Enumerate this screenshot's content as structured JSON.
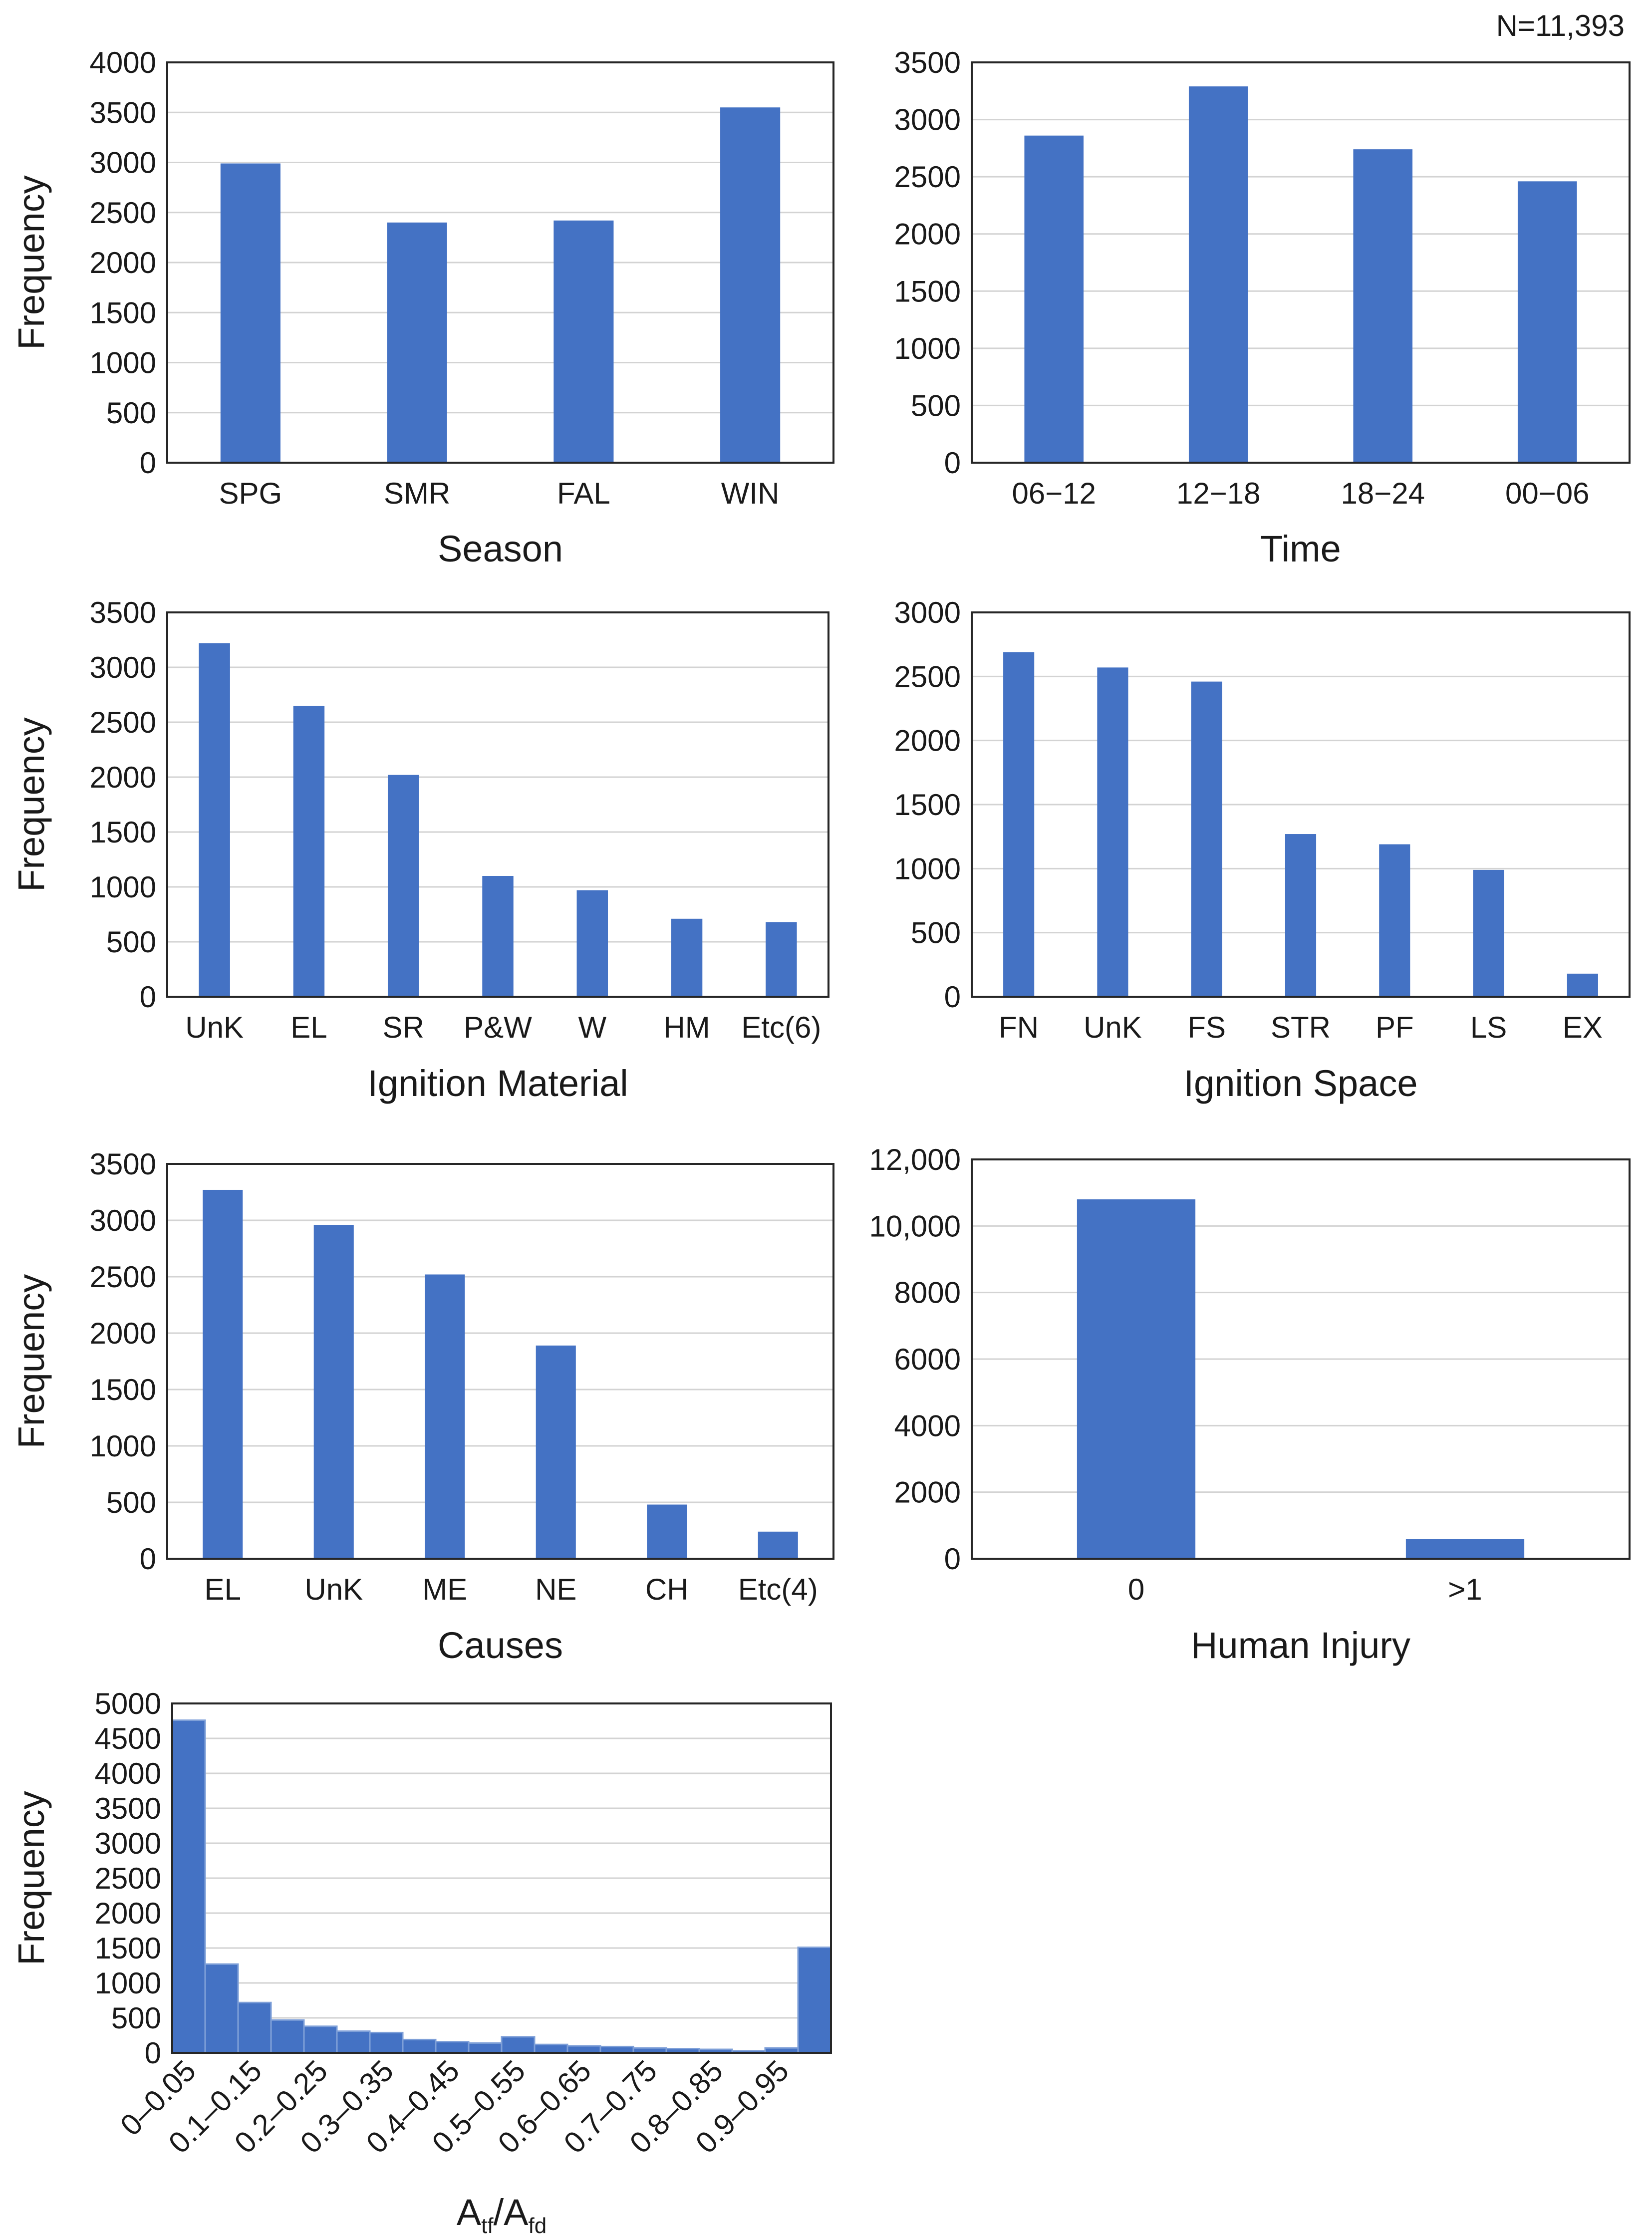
{
  "figure": {
    "sample_size_label": "N=11,393",
    "bar_color": "#4472C4"
  },
  "chart_data": [
    {
      "id": "season",
      "type": "bar",
      "title": "",
      "xlabel": "Season",
      "ylabel": "Frequency",
      "categories": [
        "SPG",
        "SMR",
        "FAL",
        "WIN"
      ],
      "values": [
        2990,
        2400,
        2420,
        3550
      ],
      "ylim": [
        0,
        4000
      ],
      "yticks": [
        0,
        500,
        1000,
        1500,
        2000,
        2500,
        3000,
        3500,
        4000
      ],
      "ytick_labels": [
        "0",
        "500",
        "1000",
        "1500",
        "2000",
        "2500",
        "3000",
        "3500",
        "4000"
      ],
      "grid": true
    },
    {
      "id": "time",
      "type": "bar",
      "title": "",
      "xlabel": "Time",
      "ylabel": "",
      "categories": [
        "06−12",
        "12−18",
        "18−24",
        "00−06"
      ],
      "values": [
        2860,
        3290,
        2740,
        2460
      ],
      "ylim": [
        0,
        3500
      ],
      "yticks": [
        0,
        500,
        1000,
        1500,
        2000,
        2500,
        3000,
        3500
      ],
      "ytick_labels": [
        "0",
        "500",
        "1000",
        "1500",
        "2000",
        "2500",
        "3000",
        "3500"
      ],
      "grid": true
    },
    {
      "id": "ignition-material",
      "type": "bar",
      "title": "",
      "xlabel": "Ignition Material",
      "ylabel": "Frequency",
      "categories": [
        "UnK",
        "EL",
        "SR",
        "P&W",
        "W",
        "HM",
        "Etc(6)"
      ],
      "values": [
        3220,
        2650,
        2020,
        1100,
        970,
        710,
        680
      ],
      "ylim": [
        0,
        3500
      ],
      "yticks": [
        0,
        500,
        1000,
        1500,
        2000,
        2500,
        3000,
        3500
      ],
      "ytick_labels": [
        "0",
        "500",
        "1000",
        "1500",
        "2000",
        "2500",
        "3000",
        "3500"
      ],
      "grid": true
    },
    {
      "id": "ignition-space",
      "type": "bar",
      "title": "",
      "xlabel": "Ignition Space",
      "ylabel": "",
      "categories": [
        "FN",
        "UnK",
        "FS",
        "STR",
        "PF",
        "LS",
        "EX"
      ],
      "values": [
        2690,
        2570,
        2460,
        1270,
        1190,
        990,
        180
      ],
      "ylim": [
        0,
        3000
      ],
      "yticks": [
        0,
        500,
        1000,
        1500,
        2000,
        2500,
        3000
      ],
      "ytick_labels": [
        "0",
        "500",
        "1000",
        "1500",
        "2000",
        "2500",
        "3000"
      ],
      "grid": true
    },
    {
      "id": "causes",
      "type": "bar",
      "title": "",
      "xlabel": "Causes",
      "ylabel": "Frequency",
      "categories": [
        "EL",
        "UnK",
        "ME",
        "NE",
        "CH",
        "Etc(4)"
      ],
      "values": [
        3270,
        2960,
        2520,
        1890,
        480,
        240
      ],
      "ylim": [
        0,
        3500
      ],
      "yticks": [
        0,
        500,
        1000,
        1500,
        2000,
        2500,
        3000,
        3500
      ],
      "ytick_labels": [
        "0",
        "500",
        "1000",
        "1500",
        "2000",
        "2500",
        "3000",
        "3500"
      ],
      "grid": true
    },
    {
      "id": "human-injury",
      "type": "bar",
      "title": "",
      "xlabel": "Human Injury",
      "ylabel": "",
      "categories": [
        "0",
        ">1"
      ],
      "values": [
        10800,
        590
      ],
      "ylim": [
        0,
        12000
      ],
      "yticks": [
        0,
        2000,
        4000,
        6000,
        8000,
        10000,
        12000
      ],
      "ytick_labels": [
        "0",
        "2000",
        "4000",
        "6000",
        "8000",
        "10,000",
        "12,000"
      ],
      "grid": true
    },
    {
      "id": "atf-afd",
      "type": "bar",
      "title": "",
      "xlabel_main": "A",
      "xlabel_sub1": "tf",
      "xlabel_sep": "/A",
      "xlabel_sub2": "fd",
      "ylabel": "Frequency",
      "bins": 20,
      "values": [
        4760,
        1270,
        720,
        470,
        380,
        310,
        290,
        190,
        160,
        140,
        230,
        120,
        100,
        90,
        70,
        60,
        50,
        30,
        70,
        1510
      ],
      "tick_labels": [
        "0–0.05",
        "0.1–0.15",
        "0.2–0.25",
        "0.3–0.35",
        "0.4–0.45",
        "0.5–0.55",
        "0.6–0.65",
        "0.7–0.75",
        "0.8–0.85",
        "0.9–0.95"
      ],
      "ylim": [
        0,
        5000
      ],
      "yticks": [
        0,
        500,
        1000,
        1500,
        2000,
        2500,
        3000,
        3500,
        4000,
        4500,
        5000
      ],
      "ytick_labels": [
        "0",
        "500",
        "1000",
        "1500",
        "2000",
        "2500",
        "3000",
        "3500",
        "4000",
        "4500",
        "5000"
      ],
      "grid": true
    }
  ]
}
